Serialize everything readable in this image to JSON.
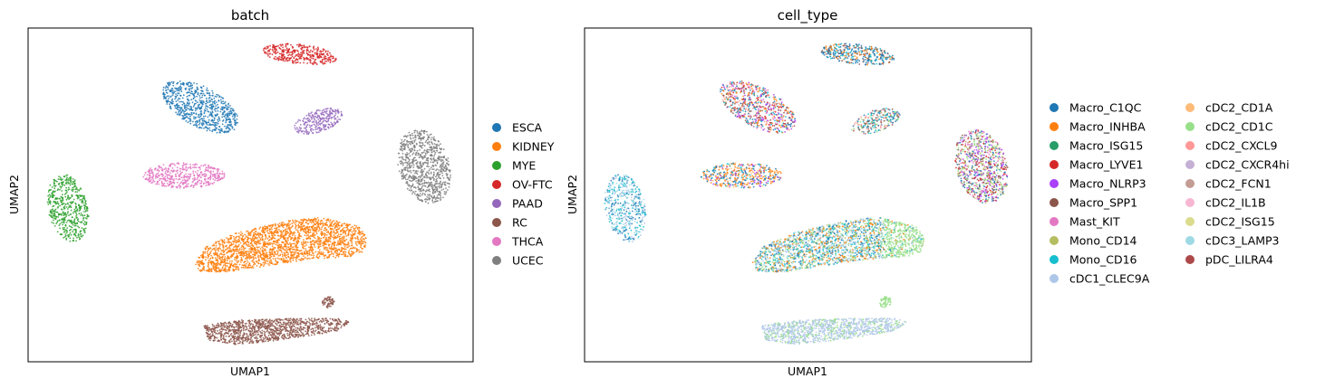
{
  "chart_data": [
    {
      "type": "scatter",
      "title": "batch",
      "xlabel": "UMAP1",
      "ylabel": "UMAP2",
      "xticks": "none",
      "yticks": "none",
      "legend_position": "right",
      "legend": [
        {
          "label": "ESCA",
          "color": "#1f77b4"
        },
        {
          "label": "KIDNEY",
          "color": "#ff7f0e"
        },
        {
          "label": "MYE",
          "color": "#2ca02c"
        },
        {
          "label": "OV-FTC",
          "color": "#d62728"
        },
        {
          "label": "PAAD",
          "color": "#9467bd"
        },
        {
          "label": "RC",
          "color": "#8c564b"
        },
        {
          "label": "THCA",
          "color": "#e377c2"
        },
        {
          "label": "UCEC",
          "color": "#7f7f7f"
        }
      ]
    },
    {
      "type": "scatter",
      "title": "cell_type",
      "xlabel": "UMAP1",
      "ylabel": "UMAP2",
      "xticks": "none",
      "yticks": "none",
      "legend_position": "right",
      "legend_columns": 2,
      "legend": [
        {
          "label": "Macro_C1QC",
          "color": "#1f77b4"
        },
        {
          "label": "Macro_INHBA",
          "color": "#ff7f0e"
        },
        {
          "label": "Macro_ISG15",
          "color": "#279e68"
        },
        {
          "label": "Macro_LYVE1",
          "color": "#d62728"
        },
        {
          "label": "Macro_NLRP3",
          "color": "#aa40fc"
        },
        {
          "label": "Macro_SPP1",
          "color": "#8c564b"
        },
        {
          "label": "Mast_KIT",
          "color": "#e377c2"
        },
        {
          "label": "Mono_CD14",
          "color": "#b5bd61"
        },
        {
          "label": "Mono_CD16",
          "color": "#17becf"
        },
        {
          "label": "cDC1_CLEC9A",
          "color": "#aec7e8"
        },
        {
          "label": "cDC2_CD1A",
          "color": "#ffbb78"
        },
        {
          "label": "cDC2_CD1C",
          "color": "#98df8a"
        },
        {
          "label": "cDC2_CXCL9",
          "color": "#ff9896"
        },
        {
          "label": "cDC2_CXCR4hi",
          "color": "#c5b0d5"
        },
        {
          "label": "cDC2_FCN1",
          "color": "#c49c94"
        },
        {
          "label": "cDC2_IL1B",
          "color": "#f7b6d2"
        },
        {
          "label": "cDC2_ISG15",
          "color": "#dbdb8d"
        },
        {
          "label": "cDC3_LAMP3",
          "color": "#9edae5"
        },
        {
          "label": "pDC_LILRA4",
          "color": "#ad494a"
        }
      ]
    }
  ]
}
